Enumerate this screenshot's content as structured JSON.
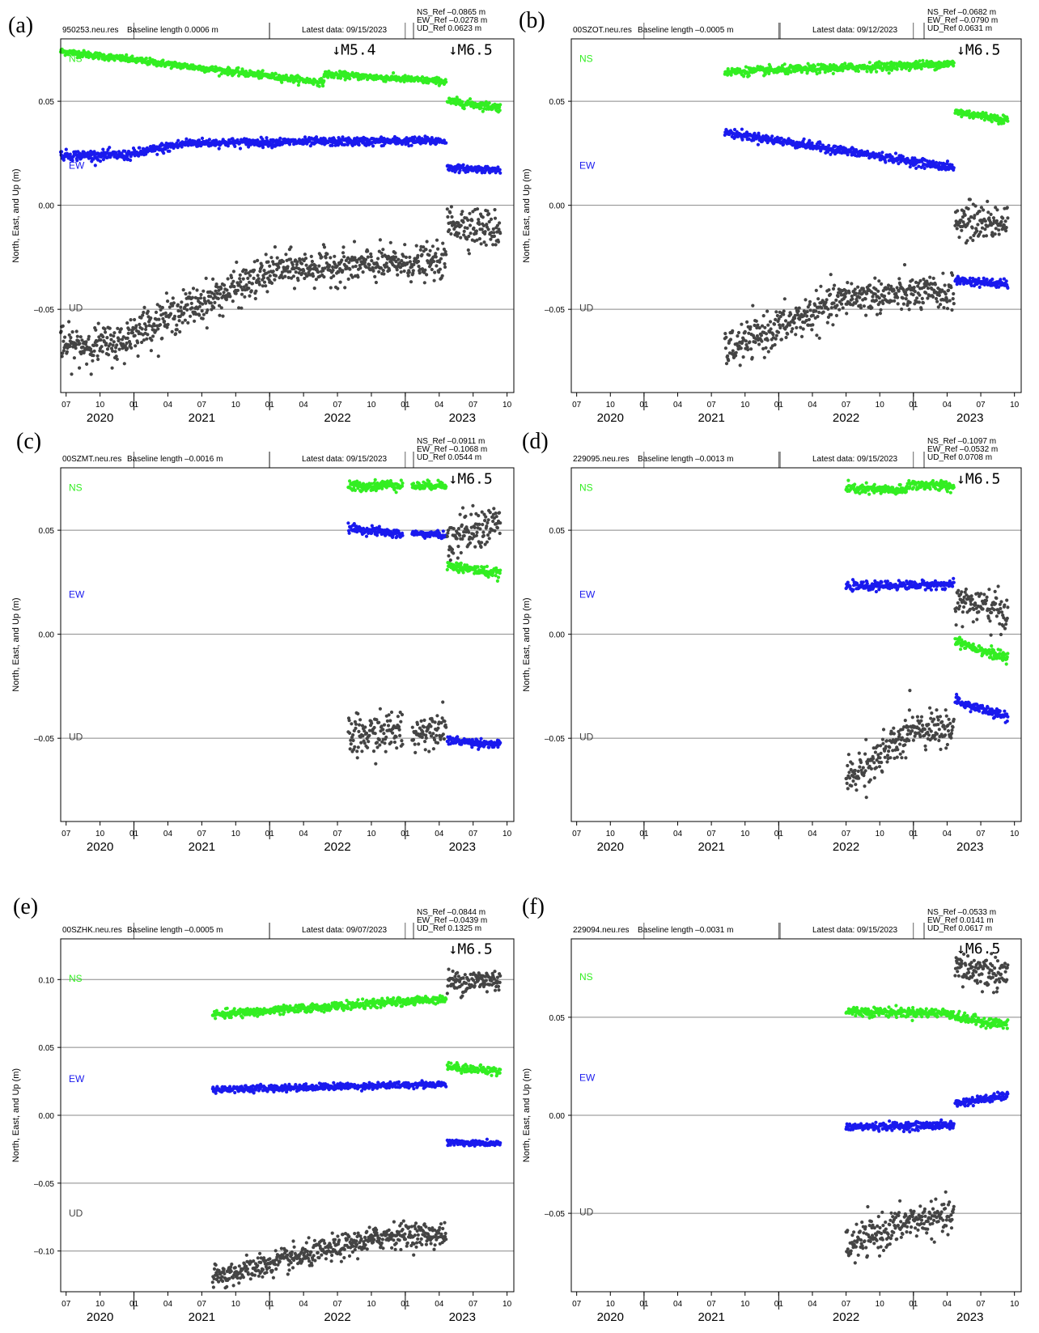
{
  "chart_data": [
    {
      "panel": "(a)",
      "type": "scatter",
      "station": "950253.neu.res",
      "baseline": "Baseline length 0.0006 m",
      "latest": "Latest data: 09/15/2023",
      "refs": [
        "NS_Ref –0.0865 m",
        "EW_Ref –0.0278 m",
        "UD_Ref 0.0623 m"
      ],
      "ylabel": "North, East, and Up (m)",
      "yticks": [
        0.05,
        0.0,
        -0.05
      ],
      "ytick_labels": [
        "0.05",
        "0.00",
        "–0.05"
      ],
      "ylim": [
        -0.09,
        0.08
      ],
      "xlim": [
        2020.46,
        2023.8
      ],
      "annotations": [
        {
          "text": "↓M5.4",
          "x": 2022.46,
          "y": 0.0725
        },
        {
          "text": "↓M6.5",
          "x": 2023.32,
          "y": 0.0725
        }
      ],
      "series_labels": [
        {
          "name": "NS",
          "color": "#33ee22",
          "y": 0.069
        },
        {
          "name": "EW",
          "color": "#1a1aee",
          "y": 0.0175
        },
        {
          "name": "UD",
          "color": "#444444",
          "y": -0.051
        }
      ],
      "series": [
        {
          "name": "NS",
          "color": "#33ee22",
          "segments": [
            [
              2020.46,
              2022.4,
              0.074,
              0.059,
              0.0008
            ],
            [
              2022.4,
              2023.3,
              0.063,
              0.0595,
              0.0008
            ],
            [
              2023.31,
              2023.7,
              0.05,
              0.047,
              0.001
            ]
          ]
        },
        {
          "name": "EW",
          "color": "#1a1aee",
          "segments": [
            [
              2020.46,
              2020.95,
              0.024,
              0.024,
              0.0012
            ],
            [
              2020.95,
              2021.4,
              0.024,
              0.03,
              0.0012
            ],
            [
              2021.4,
              2023.3,
              0.03,
              0.031,
              0.001
            ],
            [
              2023.31,
              2023.7,
              0.018,
              0.017,
              0.0008
            ]
          ]
        },
        {
          "name": "UD",
          "color": "#444444",
          "segments": [
            [
              2020.46,
              2020.95,
              -0.068,
              -0.066,
              0.0045
            ],
            [
              2020.95,
              2022.0,
              -0.062,
              -0.033,
              0.0045
            ],
            [
              2022.0,
              2023.3,
              -0.031,
              -0.027,
              0.004
            ],
            [
              2023.31,
              2023.7,
              -0.008,
              -0.012,
              0.0045
            ]
          ]
        }
      ]
    },
    {
      "panel": "(b)",
      "type": "scatter",
      "station": "00SZOT.neu.res",
      "baseline": "Baseline length –0.0005 m",
      "latest": "Latest data: 09/12/2023",
      "refs": [
        "NS_Ref –0.0682 m",
        "EW_Ref –0.0790 m",
        "UD_Ref 0.0631 m"
      ],
      "ylabel": "North, East, and Up (m)",
      "yticks": [
        0.05,
        0.0,
        -0.05
      ],
      "ytick_labels": [
        "0.05",
        "0.00",
        "–0.05"
      ],
      "ylim": [
        -0.09,
        0.08
      ],
      "xlim": [
        2020.46,
        2023.8
      ],
      "annotations": [
        {
          "text": "↓M6.5",
          "x": 2023.32,
          "y": 0.0725
        }
      ],
      "series_labels": [
        {
          "name": "NS",
          "color": "#33ee22",
          "y": 0.069
        },
        {
          "name": "EW",
          "color": "#1a1aee",
          "y": 0.0175
        },
        {
          "name": "UD",
          "color": "#444444",
          "y": -0.051
        }
      ],
      "series": [
        {
          "name": "NS",
          "color": "#33ee22",
          "segments": [
            [
              2021.6,
              2023.3,
              0.064,
              0.068,
              0.001
            ],
            [
              2023.31,
              2023.7,
              0.045,
              0.041,
              0.001
            ]
          ]
        },
        {
          "name": "EW",
          "color": "#1a1aee",
          "segments": [
            [
              2021.6,
              2023.3,
              0.035,
              0.018,
              0.001
            ],
            [
              2023.31,
              2023.7,
              -0.036,
              -0.038,
              0.001
            ]
          ]
        },
        {
          "name": "UD",
          "color": "#444444",
          "segments": [
            [
              2021.6,
              2022.5,
              -0.07,
              -0.045,
              0.0045
            ],
            [
              2022.5,
              2023.3,
              -0.044,
              -0.042,
              0.004
            ],
            [
              2023.31,
              2023.7,
              -0.008,
              -0.008,
              0.0045
            ]
          ]
        }
      ]
    },
    {
      "panel": "(c)",
      "type": "scatter",
      "station": "00SZMT.neu.res",
      "baseline": "Baseline length –0.0016 m",
      "latest": "Latest data: 09/15/2023",
      "refs": [
        "NS_Ref –0.0911 m",
        "EW_Ref –0.1068 m",
        "UD_Ref 0.0544 m"
      ],
      "ylabel": "North, East, and Up (m)",
      "yticks": [
        0.05,
        0.0,
        -0.05
      ],
      "ytick_labels": [
        "0.05",
        "0.00",
        "–0.05"
      ],
      "ylim": [
        -0.09,
        0.08
      ],
      "xlim": [
        2020.46,
        2023.8
      ],
      "annotations": [
        {
          "text": "↓M6.5",
          "x": 2023.32,
          "y": 0.0725
        }
      ],
      "series_labels": [
        {
          "name": "NS",
          "color": "#33ee22",
          "y": 0.069
        },
        {
          "name": "EW",
          "color": "#1a1aee",
          "y": 0.0175
        },
        {
          "name": "UD",
          "color": "#444444",
          "y": -0.051
        }
      ],
      "series": [
        {
          "name": "NS",
          "color": "#33ee22",
          "segments": [
            [
              2022.58,
              2022.98,
              0.071,
              0.072,
              0.0012
            ],
            [
              2023.05,
              2023.3,
              0.071,
              0.072,
              0.001
            ],
            [
              2023.31,
              2023.7,
              0.033,
              0.029,
              0.0012
            ]
          ]
        },
        {
          "name": "EW",
          "color": "#1a1aee",
          "segments": [
            [
              2022.58,
              2022.98,
              0.051,
              0.048,
              0.001
            ],
            [
              2023.05,
              2023.3,
              0.0485,
              0.0475,
              0.0008
            ],
            [
              2023.31,
              2023.7,
              -0.051,
              -0.053,
              0.001
            ]
          ]
        },
        {
          "name": "UD",
          "color": "#444444",
          "segments": [
            [
              2022.58,
              2022.98,
              -0.05,
              -0.046,
              0.005
            ],
            [
              2023.05,
              2023.3,
              -0.048,
              -0.043,
              0.004
            ],
            [
              2023.31,
              2023.7,
              0.045,
              0.054,
              0.005
            ]
          ]
        }
      ]
    },
    {
      "panel": "(d)",
      "type": "scatter",
      "station": "229095.neu.res",
      "baseline": "Baseline length –0.0013 m",
      "latest": "Latest data: 09/15/2023",
      "refs": [
        "NS_Ref –0.1097 m",
        "EW_Ref –0.0532 m",
        "UD_Ref 0.0708 m"
      ],
      "ylabel": "North, East, and Up (m)",
      "yticks": [
        0.05,
        0.0,
        -0.05
      ],
      "ytick_labels": [
        "0.05",
        "0.00",
        "–0.05"
      ],
      "ylim": [
        -0.09,
        0.08
      ],
      "xlim": [
        2020.46,
        2023.8
      ],
      "annotations": [
        {
          "text": "↓M6.5",
          "x": 2023.32,
          "y": 0.0725
        }
      ],
      "series_labels": [
        {
          "name": "NS",
          "color": "#33ee22",
          "y": 0.069
        },
        {
          "name": "EW",
          "color": "#1a1aee",
          "y": 0.0175
        },
        {
          "name": "UD",
          "color": "#444444",
          "y": -0.051
        }
      ],
      "series": [
        {
          "name": "NS",
          "color": "#33ee22",
          "segments": [
            [
              2022.5,
              2022.95,
              0.07,
              0.069,
              0.0012
            ],
            [
              2022.95,
              2023.3,
              0.072,
              0.071,
              0.0012
            ],
            [
              2023.31,
              2023.7,
              -0.003,
              -0.012,
              0.0012
            ]
          ]
        },
        {
          "name": "EW",
          "color": "#1a1aee",
          "segments": [
            [
              2022.5,
              2023.3,
              0.023,
              0.024,
              0.001
            ],
            [
              2023.31,
              2023.7,
              -0.032,
              -0.04,
              0.0012
            ]
          ]
        },
        {
          "name": "UD",
          "color": "#444444",
          "segments": [
            [
              2022.5,
              2022.95,
              -0.07,
              -0.05,
              0.005
            ],
            [
              2022.95,
              2023.3,
              -0.044,
              -0.046,
              0.004
            ],
            [
              2023.31,
              2023.7,
              0.017,
              0.01,
              0.0045
            ]
          ]
        }
      ]
    },
    {
      "panel": "(e)",
      "type": "scatter",
      "station": "00SZHK.neu.res",
      "baseline": "Baseline length –0.0005 m",
      "latest": "Latest data: 09/07/2023",
      "refs": [
        "NS_Ref –0.0844 m",
        "EW_Ref –0.0439 m",
        "UD_Ref 0.1325 m"
      ],
      "ylabel": "North, East, and Up (m)",
      "yticks": [
        0.1,
        0.05,
        0.0,
        -0.05,
        -0.1
      ],
      "ytick_labels": [
        "0.10",
        "0.05",
        "0.00",
        "–0.05",
        "–0.10"
      ],
      "ylim": [
        -0.13,
        0.13
      ],
      "xlim": [
        2020.46,
        2023.8
      ],
      "annotations": [
        {
          "text": "↓M6.5",
          "x": 2023.32,
          "y": 0.119
        }
      ],
      "series_labels": [
        {
          "name": "NS",
          "color": "#33ee22",
          "y": 0.0985
        },
        {
          "name": "EW",
          "color": "#1a1aee",
          "y": 0.0245
        },
        {
          "name": "UD",
          "color": "#444444",
          "y": -0.0745
        }
      ],
      "series": [
        {
          "name": "NS",
          "color": "#33ee22",
          "segments": [
            [
              2021.58,
              2023.3,
              0.074,
              0.086,
              0.0015
            ],
            [
              2023.31,
              2023.7,
              0.036,
              0.032,
              0.0015
            ]
          ]
        },
        {
          "name": "EW",
          "color": "#1a1aee",
          "segments": [
            [
              2021.58,
              2023.3,
              0.019,
              0.023,
              0.0012
            ],
            [
              2023.31,
              2023.7,
              -0.02,
              -0.021,
              0.001
            ]
          ]
        },
        {
          "name": "UD",
          "color": "#444444",
          "segments": [
            [
              2021.58,
              2022.9,
              -0.12,
              -0.088,
              0.0045
            ],
            [
              2022.9,
              2023.3,
              -0.088,
              -0.088,
              0.0045
            ],
            [
              2023.31,
              2023.7,
              0.098,
              0.1,
              0.0045
            ]
          ]
        }
      ]
    },
    {
      "panel": "(f)",
      "type": "scatter",
      "station": "229094.neu.res",
      "baseline": "Baseline length –0.0031 m",
      "latest": "Latest data: 09/15/2023",
      "refs": [
        "NS_Ref –0.0533 m",
        "EW_Ref 0.0141 m",
        "UD_Ref 0.0617 m"
      ],
      "ylabel": "North, East, and Up (m)",
      "yticks": [
        0.05,
        0.0,
        -0.05
      ],
      "ytick_labels": [
        "0.05",
        "0.00",
        "–0.05"
      ],
      "ylim": [
        -0.09,
        0.09
      ],
      "xlim": [
        2020.46,
        2023.8
      ],
      "annotations": [
        {
          "text": "↓M6.5",
          "x": 2023.32,
          "y": 0.0825
        }
      ],
      "series_labels": [
        {
          "name": "NS",
          "color": "#33ee22",
          "y": 0.069
        },
        {
          "name": "EW",
          "color": "#1a1aee",
          "y": 0.0175
        },
        {
          "name": "UD",
          "color": "#444444",
          "y": -0.051
        }
      ],
      "series": [
        {
          "name": "NS",
          "color": "#33ee22",
          "segments": [
            [
              2022.5,
              2023.3,
              0.053,
              0.052,
              0.0012
            ],
            [
              2023.31,
              2023.7,
              0.05,
              0.046,
              0.0012
            ]
          ]
        },
        {
          "name": "EW",
          "color": "#1a1aee",
          "segments": [
            [
              2022.5,
              2023.3,
              -0.006,
              -0.005,
              0.001
            ],
            [
              2023.31,
              2023.7,
              0.006,
              0.01,
              0.001
            ]
          ]
        },
        {
          "name": "UD",
          "color": "#444444",
          "segments": [
            [
              2022.5,
              2022.95,
              -0.067,
              -0.055,
              0.0045
            ],
            [
              2022.95,
              2023.3,
              -0.054,
              -0.052,
              0.004
            ],
            [
              2023.31,
              2023.7,
              0.075,
              0.072,
              0.0045
            ]
          ]
        }
      ]
    }
  ],
  "x_axis": {
    "month_ticks": [
      {
        "label": "07",
        "x": 2020.5
      },
      {
        "label": "10",
        "x": 2020.75
      },
      {
        "label": "01",
        "x": 2021.0
      },
      {
        "label": "04",
        "x": 2021.25
      },
      {
        "label": "07",
        "x": 2021.5
      },
      {
        "label": "10",
        "x": 2021.75
      },
      {
        "label": "01",
        "x": 2022.0
      },
      {
        "label": "04",
        "x": 2022.25
      },
      {
        "label": "07",
        "x": 2022.5
      },
      {
        "label": "10",
        "x": 2022.75
      },
      {
        "label": "01",
        "x": 2023.0
      },
      {
        "label": "04",
        "x": 2023.25
      },
      {
        "label": "07",
        "x": 2023.5
      },
      {
        "label": "10",
        "x": 2023.75
      }
    ],
    "year_labels": [
      {
        "label": "2020",
        "x": 2020.75
      },
      {
        "label": "2021",
        "x": 2021.5
      },
      {
        "label": "2022",
        "x": 2022.5
      },
      {
        "label": "2023",
        "x": 2023.42
      }
    ],
    "year_boundaries": [
      2021.0,
      2022.0,
      2023.0
    ]
  }
}
